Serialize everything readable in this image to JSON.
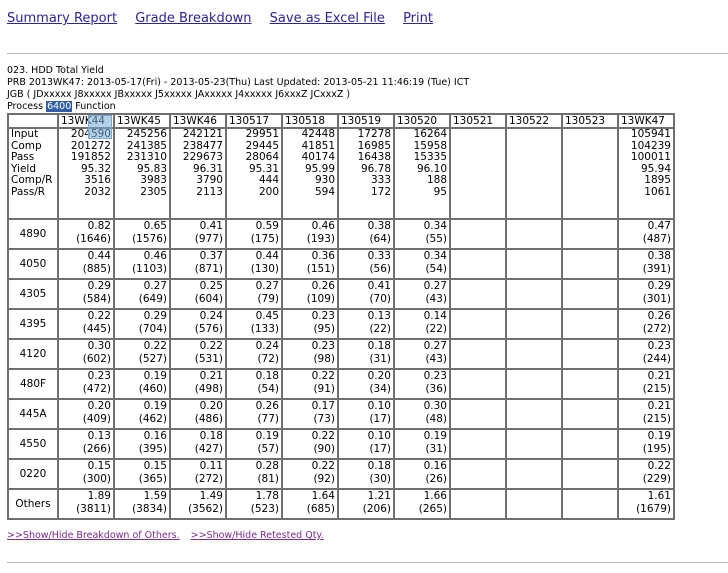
{
  "nav": [
    "Summary Report",
    "Grade Breakdown",
    "Save as Excel File",
    "Print"
  ],
  "header": {
    "title": "023. HDD Total Yield",
    "line2": "PRB  2013WK47: 2013-05-17(Fri) - 2013-05-23(Thu)  Last Updated: 2013-05-21 11:46:19 (Tue) ICT",
    "line3": "JGB ( JDxxxxx J8xxxxx JBxxxxx J5xxxxx JAxxxxx J4xxxxx J6xxxZ JCxxxZ )",
    "process_label": "Process",
    "process_value": "6400",
    "function_label": "Function"
  },
  "table": {
    "columns": [
      "13WK44",
      "13WK45",
      "13WK46",
      "130517",
      "130518",
      "130519",
      "130520",
      "130521",
      "130522",
      "130523",
      "13WK47"
    ],
    "summary_labels": [
      "Input",
      "Comp",
      "Pass",
      "Yield",
      "Comp/R",
      "Pass/R"
    ],
    "summary": [
      [
        "204590",
        "201272",
        "191852",
        "95.32",
        "3516",
        "2032"
      ],
      [
        "245256",
        "241385",
        "231310",
        "95.83",
        "3983",
        "2305"
      ],
      [
        "242121",
        "238477",
        "229673",
        "96.31",
        "3790",
        "2113"
      ],
      [
        "29951",
        "29445",
        "28064",
        "95.31",
        "444",
        "200"
      ],
      [
        "42448",
        "41851",
        "40174",
        "95.99",
        "930",
        "594"
      ],
      [
        "17278",
        "16985",
        "16438",
        "96.78",
        "333",
        "172"
      ],
      [
        "16264",
        "15958",
        "15335",
        "96.10",
        "188",
        "95"
      ],
      [
        "",
        "",
        "",
        "",
        "",
        ""
      ],
      [
        "",
        "",
        "",
        "",
        "",
        ""
      ],
      [
        "",
        "",
        "",
        "",
        "",
        ""
      ],
      [
        "105941",
        "104239",
        "100011",
        "95.94",
        "1895",
        "1061"
      ]
    ],
    "grades": [
      {
        "label": "4890",
        "cells": [
          [
            "0.82",
            "(1646)"
          ],
          [
            "0.65",
            "(1576)"
          ],
          [
            "0.41",
            "(977)"
          ],
          [
            "0.59",
            "(175)"
          ],
          [
            "0.46",
            "(193)"
          ],
          [
            "0.38",
            "(64)"
          ],
          [
            "0.34",
            "(55)"
          ],
          [
            "",
            ""
          ],
          [
            "",
            ""
          ],
          [
            "",
            ""
          ],
          [
            "0.47",
            "(487)"
          ]
        ]
      },
      {
        "label": "4050",
        "cells": [
          [
            "0.44",
            "(885)"
          ],
          [
            "0.46",
            "(1103)"
          ],
          [
            "0.37",
            "(871)"
          ],
          [
            "0.44",
            "(130)"
          ],
          [
            "0.36",
            "(151)"
          ],
          [
            "0.33",
            "(56)"
          ],
          [
            "0.34",
            "(54)"
          ],
          [
            "",
            ""
          ],
          [
            "",
            ""
          ],
          [
            "",
            ""
          ],
          [
            "0.38",
            "(391)"
          ]
        ]
      },
      {
        "label": "4305",
        "cells": [
          [
            "0.29",
            "(584)"
          ],
          [
            "0.27",
            "(649)"
          ],
          [
            "0.25",
            "(604)"
          ],
          [
            "0.27",
            "(79)"
          ],
          [
            "0.26",
            "(109)"
          ],
          [
            "0.41",
            "(70)"
          ],
          [
            "0.27",
            "(43)"
          ],
          [
            "",
            ""
          ],
          [
            "",
            ""
          ],
          [
            "",
            ""
          ],
          [
            "0.29",
            "(301)"
          ]
        ]
      },
      {
        "label": "4395",
        "cells": [
          [
            "0.22",
            "(445)"
          ],
          [
            "0.29",
            "(704)"
          ],
          [
            "0.24",
            "(576)"
          ],
          [
            "0.45",
            "(133)"
          ],
          [
            "0.23",
            "(95)"
          ],
          [
            "0.13",
            "(22)"
          ],
          [
            "0.14",
            "(22)"
          ],
          [
            "",
            ""
          ],
          [
            "",
            ""
          ],
          [
            "",
            ""
          ],
          [
            "0.26",
            "(272)"
          ]
        ]
      },
      {
        "label": "4120",
        "cells": [
          [
            "0.30",
            "(602)"
          ],
          [
            "0.22",
            "(527)"
          ],
          [
            "0.22",
            "(531)"
          ],
          [
            "0.24",
            "(72)"
          ],
          [
            "0.23",
            "(98)"
          ],
          [
            "0.18",
            "(31)"
          ],
          [
            "0.27",
            "(43)"
          ],
          [
            "",
            ""
          ],
          [
            "",
            ""
          ],
          [
            "",
            ""
          ],
          [
            "0.23",
            "(244)"
          ]
        ]
      },
      {
        "label": "480F",
        "cells": [
          [
            "0.23",
            "(472)"
          ],
          [
            "0.19",
            "(460)"
          ],
          [
            "0.21",
            "(498)"
          ],
          [
            "0.18",
            "(54)"
          ],
          [
            "0.22",
            "(91)"
          ],
          [
            "0.20",
            "(34)"
          ],
          [
            "0.23",
            "(36)"
          ],
          [
            "",
            ""
          ],
          [
            "",
            ""
          ],
          [
            "",
            ""
          ],
          [
            "0.21",
            "(215)"
          ]
        ]
      },
      {
        "label": "445A",
        "cells": [
          [
            "0.20",
            "(409)"
          ],
          [
            "0.19",
            "(462)"
          ],
          [
            "0.20",
            "(486)"
          ],
          [
            "0.26",
            "(77)"
          ],
          [
            "0.17",
            "(73)"
          ],
          [
            "0.10",
            "(17)"
          ],
          [
            "0.30",
            "(48)"
          ],
          [
            "",
            ""
          ],
          [
            "",
            ""
          ],
          [
            "",
            ""
          ],
          [
            "0.21",
            "(215)"
          ]
        ]
      },
      {
        "label": "4550",
        "cells": [
          [
            "0.13",
            "(266)"
          ],
          [
            "0.16",
            "(395)"
          ],
          [
            "0.18",
            "(427)"
          ],
          [
            "0.19",
            "(57)"
          ],
          [
            "0.22",
            "(90)"
          ],
          [
            "0.10",
            "(17)"
          ],
          [
            "0.19",
            "(31)"
          ],
          [
            "",
            ""
          ],
          [
            "",
            ""
          ],
          [
            "",
            ""
          ],
          [
            "0.19",
            "(195)"
          ]
        ]
      },
      {
        "label": "0220",
        "cells": [
          [
            "0.15",
            "(300)"
          ],
          [
            "0.15",
            "(365)"
          ],
          [
            "0.11",
            "(272)"
          ],
          [
            "0.28",
            "(81)"
          ],
          [
            "0.22",
            "(92)"
          ],
          [
            "0.18",
            "(30)"
          ],
          [
            "0.16",
            "(26)"
          ],
          [
            "",
            ""
          ],
          [
            "",
            ""
          ],
          [
            "",
            ""
          ],
          [
            "0.22",
            "(229)"
          ]
        ]
      },
      {
        "label": "Others",
        "cells": [
          [
            "1.89",
            "(3811)"
          ],
          [
            "1.59",
            "(3834)"
          ],
          [
            "1.49",
            "(3562)"
          ],
          [
            "1.78",
            "(523)"
          ],
          [
            "1.64",
            "(685)"
          ],
          [
            "1.21",
            "(206)"
          ],
          [
            "1.66",
            "(265)"
          ],
          [
            "",
            ""
          ],
          [
            "",
            ""
          ],
          [
            "",
            ""
          ],
          [
            "1.61",
            "(1679)"
          ]
        ]
      }
    ]
  },
  "footer_links": [
    ">>Show/Hide Breakdown of Others.",
    ">>Show/Hide Retested Qty."
  ]
}
